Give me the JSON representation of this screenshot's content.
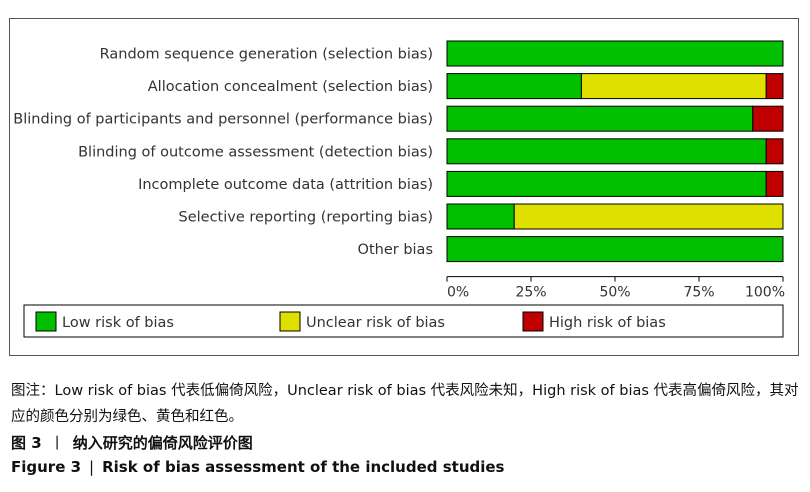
{
  "chart_data": {
    "type": "bar",
    "orientation": "horizontal-stacked-100",
    "categories": [
      "Random sequence generation (selection bias)",
      "Allocation concealment (selection bias)",
      "Blinding of participants and personnel (performance bias)",
      "Blinding of outcome assessment (detection bias)",
      "Incomplete outcome data (attrition bias)",
      "Selective reporting (reporting bias)",
      "Other bias"
    ],
    "series": [
      {
        "name": "Low risk of bias",
        "color": "#00C000",
        "values": [
          100,
          40,
          91,
          95,
          95,
          20,
          100
        ]
      },
      {
        "name": "Unclear risk of bias",
        "color": "#E0E000",
        "values": [
          0,
          55,
          0,
          0,
          0,
          80,
          0
        ]
      },
      {
        "name": "High risk of bias",
        "color": "#C00000",
        "values": [
          0,
          5,
          9,
          5,
          5,
          0,
          0
        ]
      }
    ],
    "xlim": [
      0,
      100
    ],
    "xticks": [
      "0%",
      "25%",
      "50%",
      "75%",
      "100%"
    ],
    "legend_position": "bottom"
  },
  "caption": {
    "note": "图注：Low risk of bias 代表低偏倚风险，Unclear risk of bias 代表风险未知，High risk of bias 代表高偏倚风险，其对应的颜色分别为绿色、黄色和红色。",
    "figure_cn_label": "图 3",
    "figure_cn_sep": "丨",
    "figure_cn_title": "纳入研究的偏倚风险评价图",
    "figure_en_label": "Figure 3",
    "figure_en_sep": "|",
    "figure_en_title": "Risk of bias assessment of the included studies"
  }
}
